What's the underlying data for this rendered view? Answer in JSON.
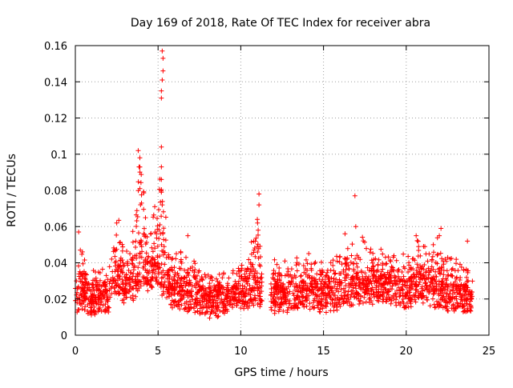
{
  "chart_data": {
    "type": "scatter",
    "title": "Day 169 of 2018, Rate Of TEC Index for receiver abra",
    "xlabel": "GPS time / hours",
    "ylabel": "ROTI / TECUs",
    "xlim": [
      0,
      25
    ],
    "ylim": [
      0,
      0.16
    ],
    "x_ticks": [
      0,
      5,
      10,
      15,
      20,
      25
    ],
    "y_ticks": [
      0,
      0.02,
      0.04,
      0.06,
      0.08,
      0.1,
      0.12,
      0.14,
      0.16
    ],
    "x_tick_labels": [
      "0",
      "5",
      "10",
      "15",
      "20",
      "25"
    ],
    "y_tick_labels": [
      "0",
      "0.02",
      "0.04",
      "0.06",
      "0.08",
      "0.1",
      "0.12",
      "0.14",
      "0.16"
    ],
    "grid": true,
    "marker": "plus",
    "color": "#ff0000",
    "data_gap_hours": [
      11.3,
      11.8
    ],
    "envelope": [
      {
        "x": 0.0,
        "base": 0.018,
        "spread": 0.01
      },
      {
        "x": 0.3,
        "base": 0.022,
        "spread": 0.025
      },
      {
        "x": 0.8,
        "base": 0.018,
        "spread": 0.01
      },
      {
        "x": 1.5,
        "base": 0.02,
        "spread": 0.01
      },
      {
        "x": 2.0,
        "base": 0.02,
        "spread": 0.008
      },
      {
        "x": 2.5,
        "base": 0.03,
        "spread": 0.03
      },
      {
        "x": 3.0,
        "base": 0.025,
        "spread": 0.02
      },
      {
        "x": 3.5,
        "base": 0.025,
        "spread": 0.03
      },
      {
        "x": 3.9,
        "base": 0.035,
        "spread": 0.06
      },
      {
        "x": 4.3,
        "base": 0.03,
        "spread": 0.035
      },
      {
        "x": 4.8,
        "base": 0.035,
        "spread": 0.04
      },
      {
        "x": 5.2,
        "base": 0.03,
        "spread": 0.06
      },
      {
        "x": 5.6,
        "base": 0.025,
        "spread": 0.02
      },
      {
        "x": 6.0,
        "base": 0.022,
        "spread": 0.02
      },
      {
        "x": 7.0,
        "base": 0.02,
        "spread": 0.02
      },
      {
        "x": 8.0,
        "base": 0.017,
        "spread": 0.01
      },
      {
        "x": 9.0,
        "base": 0.018,
        "spread": 0.012
      },
      {
        "x": 10.0,
        "base": 0.022,
        "spread": 0.015
      },
      {
        "x": 10.5,
        "base": 0.022,
        "spread": 0.02
      },
      {
        "x": 11.0,
        "base": 0.025,
        "spread": 0.04
      },
      {
        "x": 11.3,
        "base": 0.02,
        "spread": 0.015
      },
      {
        "x": 12.0,
        "base": 0.02,
        "spread": 0.015
      },
      {
        "x": 13.0,
        "base": 0.02,
        "spread": 0.015
      },
      {
        "x": 14.0,
        "base": 0.022,
        "spread": 0.02
      },
      {
        "x": 15.0,
        "base": 0.02,
        "spread": 0.018
      },
      {
        "x": 16.0,
        "base": 0.022,
        "spread": 0.02
      },
      {
        "x": 17.0,
        "base": 0.025,
        "spread": 0.025
      },
      {
        "x": 18.0,
        "base": 0.025,
        "spread": 0.02
      },
      {
        "x": 19.0,
        "base": 0.025,
        "spread": 0.02
      },
      {
        "x": 20.0,
        "base": 0.022,
        "spread": 0.018
      },
      {
        "x": 21.0,
        "base": 0.025,
        "spread": 0.025
      },
      {
        "x": 22.0,
        "base": 0.022,
        "spread": 0.025
      },
      {
        "x": 23.0,
        "base": 0.02,
        "spread": 0.018
      },
      {
        "x": 24.0,
        "base": 0.018,
        "spread": 0.015
      }
    ],
    "peaks": [
      {
        "x": 0.2,
        "y": 0.057
      },
      {
        "x": 0.3,
        "y": 0.047
      },
      {
        "x": 2.5,
        "y": 0.062
      },
      {
        "x": 3.8,
        "y": 0.102
      },
      {
        "x": 3.9,
        "y": 0.098
      },
      {
        "x": 3.85,
        "y": 0.093
      },
      {
        "x": 3.9,
        "y": 0.081
      },
      {
        "x": 4.0,
        "y": 0.073
      },
      {
        "x": 4.8,
        "y": 0.071
      },
      {
        "x": 5.25,
        "y": 0.157
      },
      {
        "x": 5.3,
        "y": 0.153
      },
      {
        "x": 5.3,
        "y": 0.146
      },
      {
        "x": 5.25,
        "y": 0.141
      },
      {
        "x": 5.2,
        "y": 0.135
      },
      {
        "x": 5.2,
        "y": 0.131
      },
      {
        "x": 5.2,
        "y": 0.104
      },
      {
        "x": 5.2,
        "y": 0.093
      },
      {
        "x": 5.2,
        "y": 0.086
      },
      {
        "x": 5.2,
        "y": 0.079
      },
      {
        "x": 5.25,
        "y": 0.072
      },
      {
        "x": 6.8,
        "y": 0.055
      },
      {
        "x": 10.8,
        "y": 0.047
      },
      {
        "x": 11.1,
        "y": 0.078
      },
      {
        "x": 11.1,
        "y": 0.072
      },
      {
        "x": 11.0,
        "y": 0.064
      },
      {
        "x": 11.05,
        "y": 0.058
      },
      {
        "x": 16.9,
        "y": 0.077
      },
      {
        "x": 16.95,
        "y": 0.06
      },
      {
        "x": 16.3,
        "y": 0.056
      },
      {
        "x": 20.6,
        "y": 0.055
      },
      {
        "x": 22.1,
        "y": 0.059
      },
      {
        "x": 22.0,
        "y": 0.055
      },
      {
        "x": 23.7,
        "y": 0.052
      }
    ]
  }
}
